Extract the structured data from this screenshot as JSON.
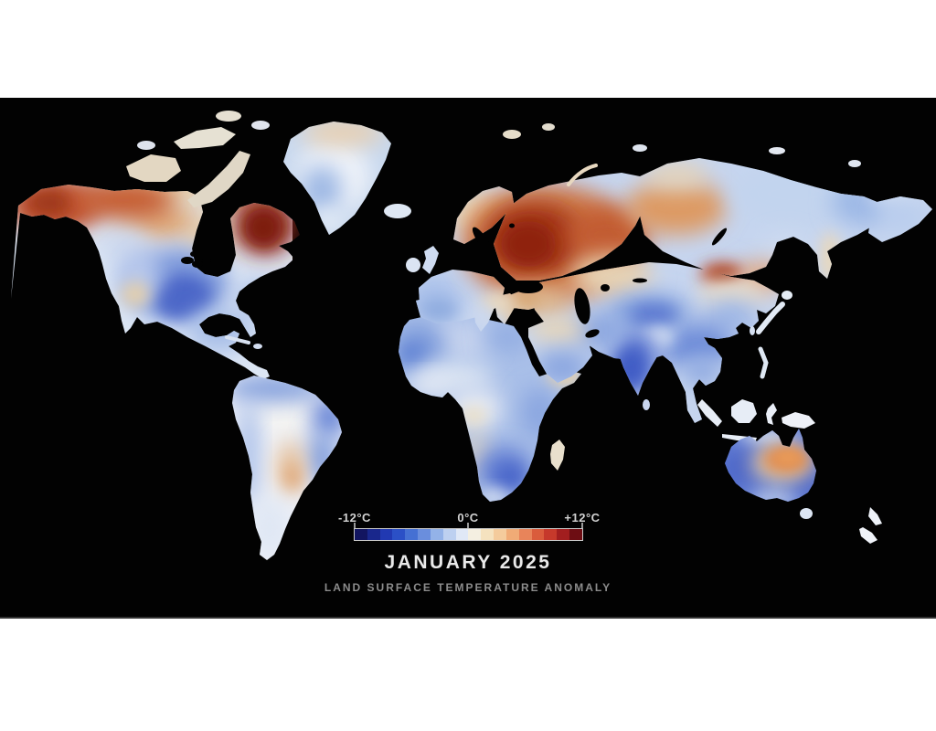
{
  "video": {
    "title": "JANUARY 2025",
    "subtitle": "LAND SURFACE TEMPERATURE ANOMALY",
    "legend": {
      "min_label": "-12°C",
      "zero_label": "0°C",
      "max_label": "+12°C",
      "unit": "°C",
      "min_value": -12,
      "max_value": 12,
      "colorbar_colors": [
        "#121560",
        "#19278c",
        "#2139b2",
        "#2b50c6",
        "#4570d3",
        "#6a8edd",
        "#93b2e8",
        "#bdd0f0",
        "#e0e8f6",
        "#f4efe1",
        "#f5e2bf",
        "#f4cb9c",
        "#f0ab76",
        "#e8845a",
        "#da5c3c",
        "#c6392b",
        "#a21e1f",
        "#6d0d13"
      ]
    },
    "colors": {
      "video_background": "#020202",
      "page_background": "#ffffff",
      "title_text": "#e9e9e9",
      "subtitle_text": "#8c8c8c",
      "scale_label_text": "#d2d2d2",
      "colorbar_border": "#c9c9c9",
      "cold_extreme": "#121560",
      "neutral": "#f2efe4",
      "warm_extreme": "#6d0d13"
    },
    "map_anomalies": [
      {
        "region": "Alaska and western Canada",
        "anomaly": "warm"
      },
      {
        "region": "Northeastern Canada (Quebec / Labrador)",
        "anomaly": "strong warm"
      },
      {
        "region": "Central and southern United States",
        "anomaly": "cold"
      },
      {
        "region": "Greenland",
        "anomaly": "slight cold"
      },
      {
        "region": "Western Europe and Iberia",
        "anomaly": "cold"
      },
      {
        "region": "Scandinavia",
        "anomaly": "slight warm"
      },
      {
        "region": "Eastern Europe and western Russia",
        "anomaly": "strong warm"
      },
      {
        "region": "Central Siberia",
        "anomaly": "warm"
      },
      {
        "region": "Eastern Siberia",
        "anomaly": "slight cold"
      },
      {
        "region": "North Africa",
        "anomaly": "cold"
      },
      {
        "region": "Middle East and South Asia",
        "anomaly": "cold"
      },
      {
        "region": "India",
        "anomaly": "cold"
      },
      {
        "region": "Southern Africa",
        "anomaly": "cold"
      },
      {
        "region": "South America",
        "anomaly": "near neutral to cold"
      },
      {
        "region": "Central Australia",
        "anomaly": "warm"
      },
      {
        "region": "Rest of Australia",
        "anomaly": "cold"
      }
    ]
  }
}
